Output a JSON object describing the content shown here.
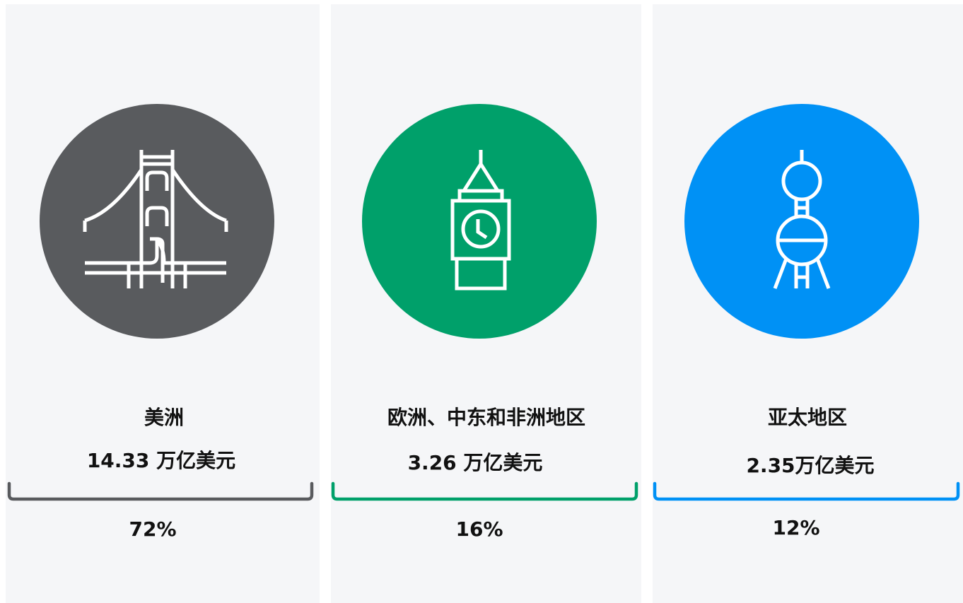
{
  "cards": [
    {
      "region": "美洲",
      "amount": "14.33 万亿美元",
      "share": "72%"
    },
    {
      "region": "欧洲、中东和非洲地区",
      "amount": "3.26 万亿美元",
      "share": "16%"
    },
    {
      "region": "亚太地区",
      "amount": "2.35万亿美元",
      "share": "12%"
    }
  ]
}
